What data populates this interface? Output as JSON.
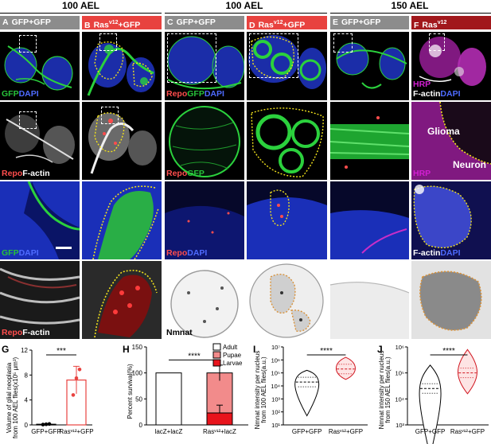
{
  "time_headers": [
    "100 AEL",
    "100 AEL",
    "150 AEL"
  ],
  "columns": [
    {
      "letter": "A",
      "label": "GFP+GFP",
      "color": "#8c8c8c"
    },
    {
      "letter": "B",
      "label": "Ras",
      "sup": "v12",
      "suffix": "+GFP",
      "color": "#e8423f"
    },
    {
      "letter": "C",
      "label": "GFP+GFP",
      "color": "#8c8c8c"
    },
    {
      "letter": "D",
      "label": "Ras",
      "sup": "v12",
      "suffix": "+GFP",
      "color": "#e8423f"
    },
    {
      "letter": "E",
      "label": "GFP+GFP",
      "color": "#8c8c8c"
    },
    {
      "letter": "F",
      "label": "Ras",
      "sup": "v12",
      "suffix": "",
      "color": "#a1181c"
    }
  ],
  "panel_labels": {
    "a1": {
      "p1": "GFP",
      "p2": "DAPI"
    },
    "a2": {
      "p1": "Repo",
      "p2": "F-actin"
    },
    "a3": {
      "p1": "GFP",
      "p2": "DAPI"
    },
    "a4": {
      "p1": "Repo",
      "p2": "F-actin"
    },
    "c1": {
      "p1": "Repo",
      "p2": "GFP",
      "p3": "DAPI"
    },
    "c2": {
      "p1": "Repo",
      "p2": "GFP"
    },
    "c3": {
      "p1": "Repo",
      "p2": "DAPI"
    },
    "c4": "Nmnat",
    "f1": {
      "p1": "HRP",
      "p2": "F-actin",
      "p3": "DAPI"
    },
    "f2_glioma": "Glioma",
    "f2_neuron": "Neuron",
    "f2_hrp": "HRP",
    "f3": {
      "p1": "F-actin",
      "p2": "DAPI"
    }
  },
  "colors": {
    "green": "#27c33a",
    "blue": "#2a3bd6",
    "red": "#e8423f",
    "magenta": "#d21fd2",
    "yellow": "#f2e21b",
    "orange": "#d9923a"
  },
  "panel_G": {
    "letter": "G",
    "ylabel_lines": [
      "Volume of glial neoplasia",
      "from 100 AEL flies(x10⁵ μm³)"
    ],
    "significance": "***",
    "chart_data": {
      "type": "bar",
      "categories": [
        "GFP+GFP",
        "Rasᵛ¹²+GFP"
      ],
      "values": [
        0.1,
        7.2
      ],
      "error": [
        0.1,
        2.2
      ],
      "points": [
        [
          0.05,
          0.1,
          0.15
        ],
        [
          4.8,
          7.5,
          8.9
        ]
      ],
      "ylim": [
        0,
        12
      ],
      "yticks": [
        0,
        4,
        8,
        12
      ]
    }
  },
  "panel_H": {
    "letter": "H",
    "ylabel": "Percent survival(%)",
    "significance": "****",
    "legend": [
      "Adult",
      "Pupae",
      "Larvae"
    ],
    "chart_data": {
      "type": "bar",
      "categories": [
        "lacZ+lacZ",
        "Rasᵛ¹²+lacZ"
      ],
      "series": [
        {
          "name": "Adult",
          "values": [
            100,
            0
          ]
        },
        {
          "name": "Pupae",
          "values": [
            0,
            77
          ]
        },
        {
          "name": "Larvae",
          "values": [
            0,
            23
          ]
        }
      ],
      "error": [
        0,
        15
      ],
      "larvae_error": 15,
      "ylim": [
        0,
        150
      ],
      "yticks": [
        0,
        50,
        100,
        150
      ]
    }
  },
  "panel_I": {
    "letter": "I",
    "ylabel_lines": [
      "Nmnat intensity per nucleus",
      "from 100 AEL flies(a.u.)"
    ],
    "significance": "****",
    "chart_data": {
      "type": "violin",
      "categories": [
        "GFP+GFP",
        "Rasᵛ¹²+GFP"
      ],
      "median_log10": [
        4.3,
        5.3
      ],
      "ylim_log10": [
        1,
        7
      ],
      "yticks": [
        "10¹",
        "10²",
        "10³",
        "10⁴",
        "10⁵",
        "10⁶",
        "10⁷"
      ]
    }
  },
  "panel_J": {
    "letter": "J",
    "ylabel_lines": [
      "Nmnat intensity per nucleus",
      "from 150 AEL flies(a.u.)"
    ],
    "significance": "****",
    "chart_data": {
      "type": "violin",
      "categories": [
        "GFP+GFP",
        "Rasᵛ¹²+GFP"
      ],
      "median_log10": [
        4.4,
        5.0
      ],
      "ylim_log10": [
        3,
        6
      ],
      "yticks": [
        "10³",
        "10⁴",
        "10⁵",
        "10⁶"
      ]
    }
  }
}
